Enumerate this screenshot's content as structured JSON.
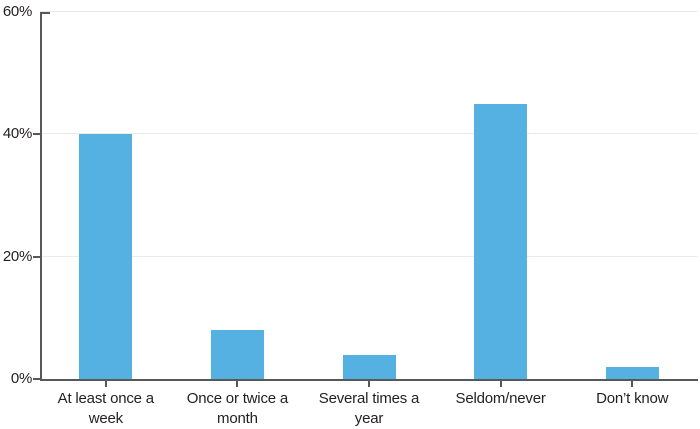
{
  "chart_data": {
    "type": "bar",
    "title": "",
    "xlabel": "",
    "ylabel": "",
    "units": "percent",
    "ylim": [
      0,
      60
    ],
    "grid": "horizontal",
    "legend": "none",
    "categories": [
      "At least once a week",
      "Once or twice a month",
      "Several times a year",
      "Seldom/never",
      "Don't know"
    ],
    "tick_labels": [
      "At least once a\nweek",
      "Once or twice a\nmonth",
      "Several times a\nyear",
      "Seldom/never",
      "Don’t know"
    ],
    "values": [
      40,
      8,
      4,
      45,
      2
    ],
    "yticks": [
      {
        "value": 0,
        "label": "0%"
      },
      {
        "value": 20,
        "label": "20%"
      },
      {
        "value": 40,
        "label": "40%"
      },
      {
        "value": 60,
        "label": "60%"
      }
    ],
    "colors": {
      "bar": "#55B1E2",
      "axis": "#57585A",
      "grid": "#EAEAEA",
      "text": "#231F20"
    }
  }
}
